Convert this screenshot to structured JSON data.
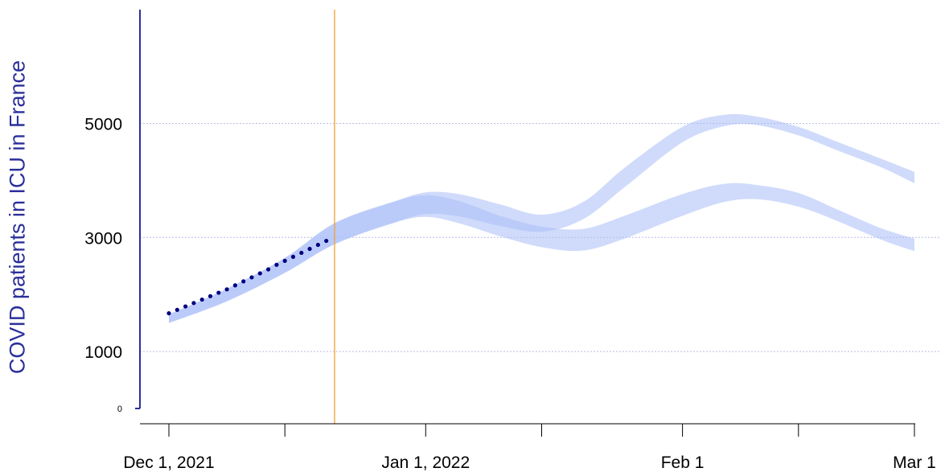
{
  "chart_data": {
    "type": "area",
    "ylabel": "COVID patients in ICU in France",
    "xlabel": "",
    "title": "",
    "x_axis": {
      "type": "date",
      "range": [
        "2021-11-28",
        "2022-03-01"
      ],
      "ticks": [
        {
          "date": "2021-12-01",
          "label": "Dec 1, 2021"
        },
        {
          "date": "2021-12-15",
          "label": ""
        },
        {
          "date": "2022-01-01",
          "label": "Jan 1, 2022"
        },
        {
          "date": "2022-01-15",
          "label": ""
        },
        {
          "date": "2022-02-01",
          "label": "Feb 1"
        },
        {
          "date": "2022-02-15",
          "label": ""
        },
        {
          "date": "2022-03-01",
          "label": "Mar 1"
        }
      ]
    },
    "y_axis": {
      "range": [
        0,
        7000
      ],
      "ticks": [
        {
          "value": 0,
          "label": "0",
          "small": true
        },
        {
          "value": 1000,
          "label": "1000"
        },
        {
          "value": 3000,
          "label": "3000"
        },
        {
          "value": 5000,
          "label": "5000"
        }
      ],
      "grid": true
    },
    "vertical_line": {
      "date": "2021-12-21"
    },
    "observed": {
      "name": "",
      "dates": [
        "2021-12-01",
        "2021-12-02",
        "2021-12-03",
        "2021-12-04",
        "2021-12-05",
        "2021-12-06",
        "2021-12-07",
        "2021-12-08",
        "2021-12-09",
        "2021-12-10",
        "2021-12-11",
        "2021-12-12",
        "2021-12-13",
        "2021-12-14",
        "2021-12-15",
        "2021-12-16",
        "2021-12-17",
        "2021-12-18",
        "2021-12-19",
        "2021-12-20"
      ],
      "values": [
        1670,
        1730,
        1790,
        1850,
        1910,
        1970,
        2030,
        2090,
        2160,
        2230,
        2300,
        2370,
        2440,
        2520,
        2590,
        2660,
        2730,
        2800,
        2870,
        2940
      ]
    },
    "scenarios": [
      {
        "name": "",
        "dates": [
          "2021-12-01",
          "2021-12-08",
          "2021-12-15",
          "2021-12-21",
          "2021-12-28",
          "2022-01-01",
          "2022-01-05",
          "2022-01-10",
          "2022-01-15",
          "2022-01-20",
          "2022-01-25",
          "2022-02-01",
          "2022-02-06",
          "2022-02-10",
          "2022-02-15",
          "2022-02-20",
          "2022-02-25",
          "2022-03-01"
        ],
        "lower": [
          1500,
          1880,
          2380,
          2880,
          3250,
          3360,
          3250,
          3020,
          2830,
          2770,
          2980,
          3380,
          3620,
          3670,
          3540,
          3270,
          2960,
          2760
        ],
        "upper": [
          1650,
          2100,
          2640,
          3250,
          3620,
          3740,
          3640,
          3380,
          3190,
          3150,
          3380,
          3760,
          3940,
          3920,
          3780,
          3470,
          3160,
          2980
        ]
      },
      {
        "name": "",
        "dates": [
          "2021-12-01",
          "2021-12-08",
          "2021-12-15",
          "2021-12-21",
          "2021-12-28",
          "2022-01-01",
          "2022-01-05",
          "2022-01-10",
          "2022-01-15",
          "2022-01-20",
          "2022-01-25",
          "2022-02-01",
          "2022-02-06",
          "2022-02-10",
          "2022-02-15",
          "2022-02-20",
          "2022-02-25",
          "2022-03-01"
        ],
        "lower": [
          1500,
          1880,
          2380,
          2880,
          3250,
          3410,
          3370,
          3200,
          3100,
          3320,
          3880,
          4670,
          4950,
          4970,
          4790,
          4510,
          4230,
          3950
        ],
        "upper": [
          1650,
          2100,
          2640,
          3250,
          3620,
          3790,
          3760,
          3580,
          3400,
          3620,
          4220,
          4940,
          5150,
          5120,
          4940,
          4660,
          4380,
          4150
        ]
      }
    ],
    "colors": {
      "axis": "#2a2f9a",
      "observed": "#000080",
      "band": "#aabef7",
      "grid": "#b8bde8",
      "vline": "#f0a030",
      "text": "#000000"
    }
  }
}
